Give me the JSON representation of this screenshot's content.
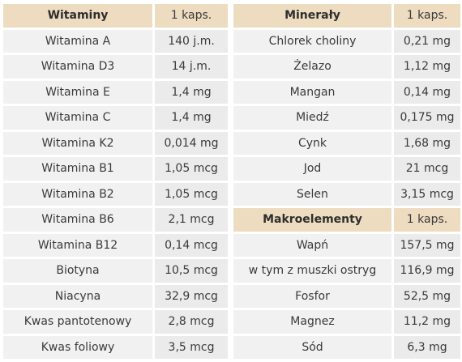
{
  "vitamins": {
    "header": {
      "name": "Witaminy",
      "value": "1 kaps."
    },
    "rows": [
      {
        "name": "Witamina A",
        "value": "140 j.m."
      },
      {
        "name": "Witamina D3",
        "value": "14 j.m."
      },
      {
        "name": "Witamina E",
        "value": "1,4 mg"
      },
      {
        "name": "Witamina C",
        "value": "1,4 mg"
      },
      {
        "name": "Witamina K2",
        "value": "0,014 mg"
      },
      {
        "name": "Witamina B1",
        "value": "1,05 mcg"
      },
      {
        "name": "Witamina B2",
        "value": "1,05 mcg"
      },
      {
        "name": "Witamina B6",
        "value": "2,1 mcg"
      },
      {
        "name": "Witamina B12",
        "value": "0,14 mcg"
      },
      {
        "name": "Biotyna",
        "value": "10,5 mcg"
      },
      {
        "name": "Niacyna",
        "value": "32,9 mcg"
      },
      {
        "name": "Kwas pantotenowy",
        "value": "2,8 mcg"
      },
      {
        "name": "Kwas foliowy",
        "value": "3,5 mcg"
      }
    ]
  },
  "minerals": {
    "header": {
      "name": "Minerały",
      "value": "1 kaps."
    },
    "rows": [
      {
        "name": "Chlorek choliny",
        "value": "0,21 mg"
      },
      {
        "name": "Żelazo",
        "value": "1,12 mg"
      },
      {
        "name": "Mangan",
        "value": "0,14 mg"
      },
      {
        "name": "Miedź",
        "value": "0,175 mg"
      },
      {
        "name": "Cynk",
        "value": "1,68 mg"
      },
      {
        "name": "Jod",
        "value": "21 mcg"
      },
      {
        "name": "Selen",
        "value": "3,15 mcg"
      }
    ]
  },
  "macroelements": {
    "header": {
      "name": "Makroelementy",
      "value": "1 kaps."
    },
    "rows": [
      {
        "name": "Wapń",
        "value": "157,5 mg"
      },
      {
        "name": "w tym z muszki ostryg",
        "value": "116,9 mg"
      },
      {
        "name": "Fosfor",
        "value": "52,5 mg"
      },
      {
        "name": "Magnez",
        "value": "11,2 mg"
      },
      {
        "name": "Sód",
        "value": "6,3 mg"
      }
    ]
  },
  "colors": {
    "header_bg": "#eddcc0",
    "name_cell_bg": "#f1f1f1",
    "value_cell_bg": "#ebebeb"
  }
}
